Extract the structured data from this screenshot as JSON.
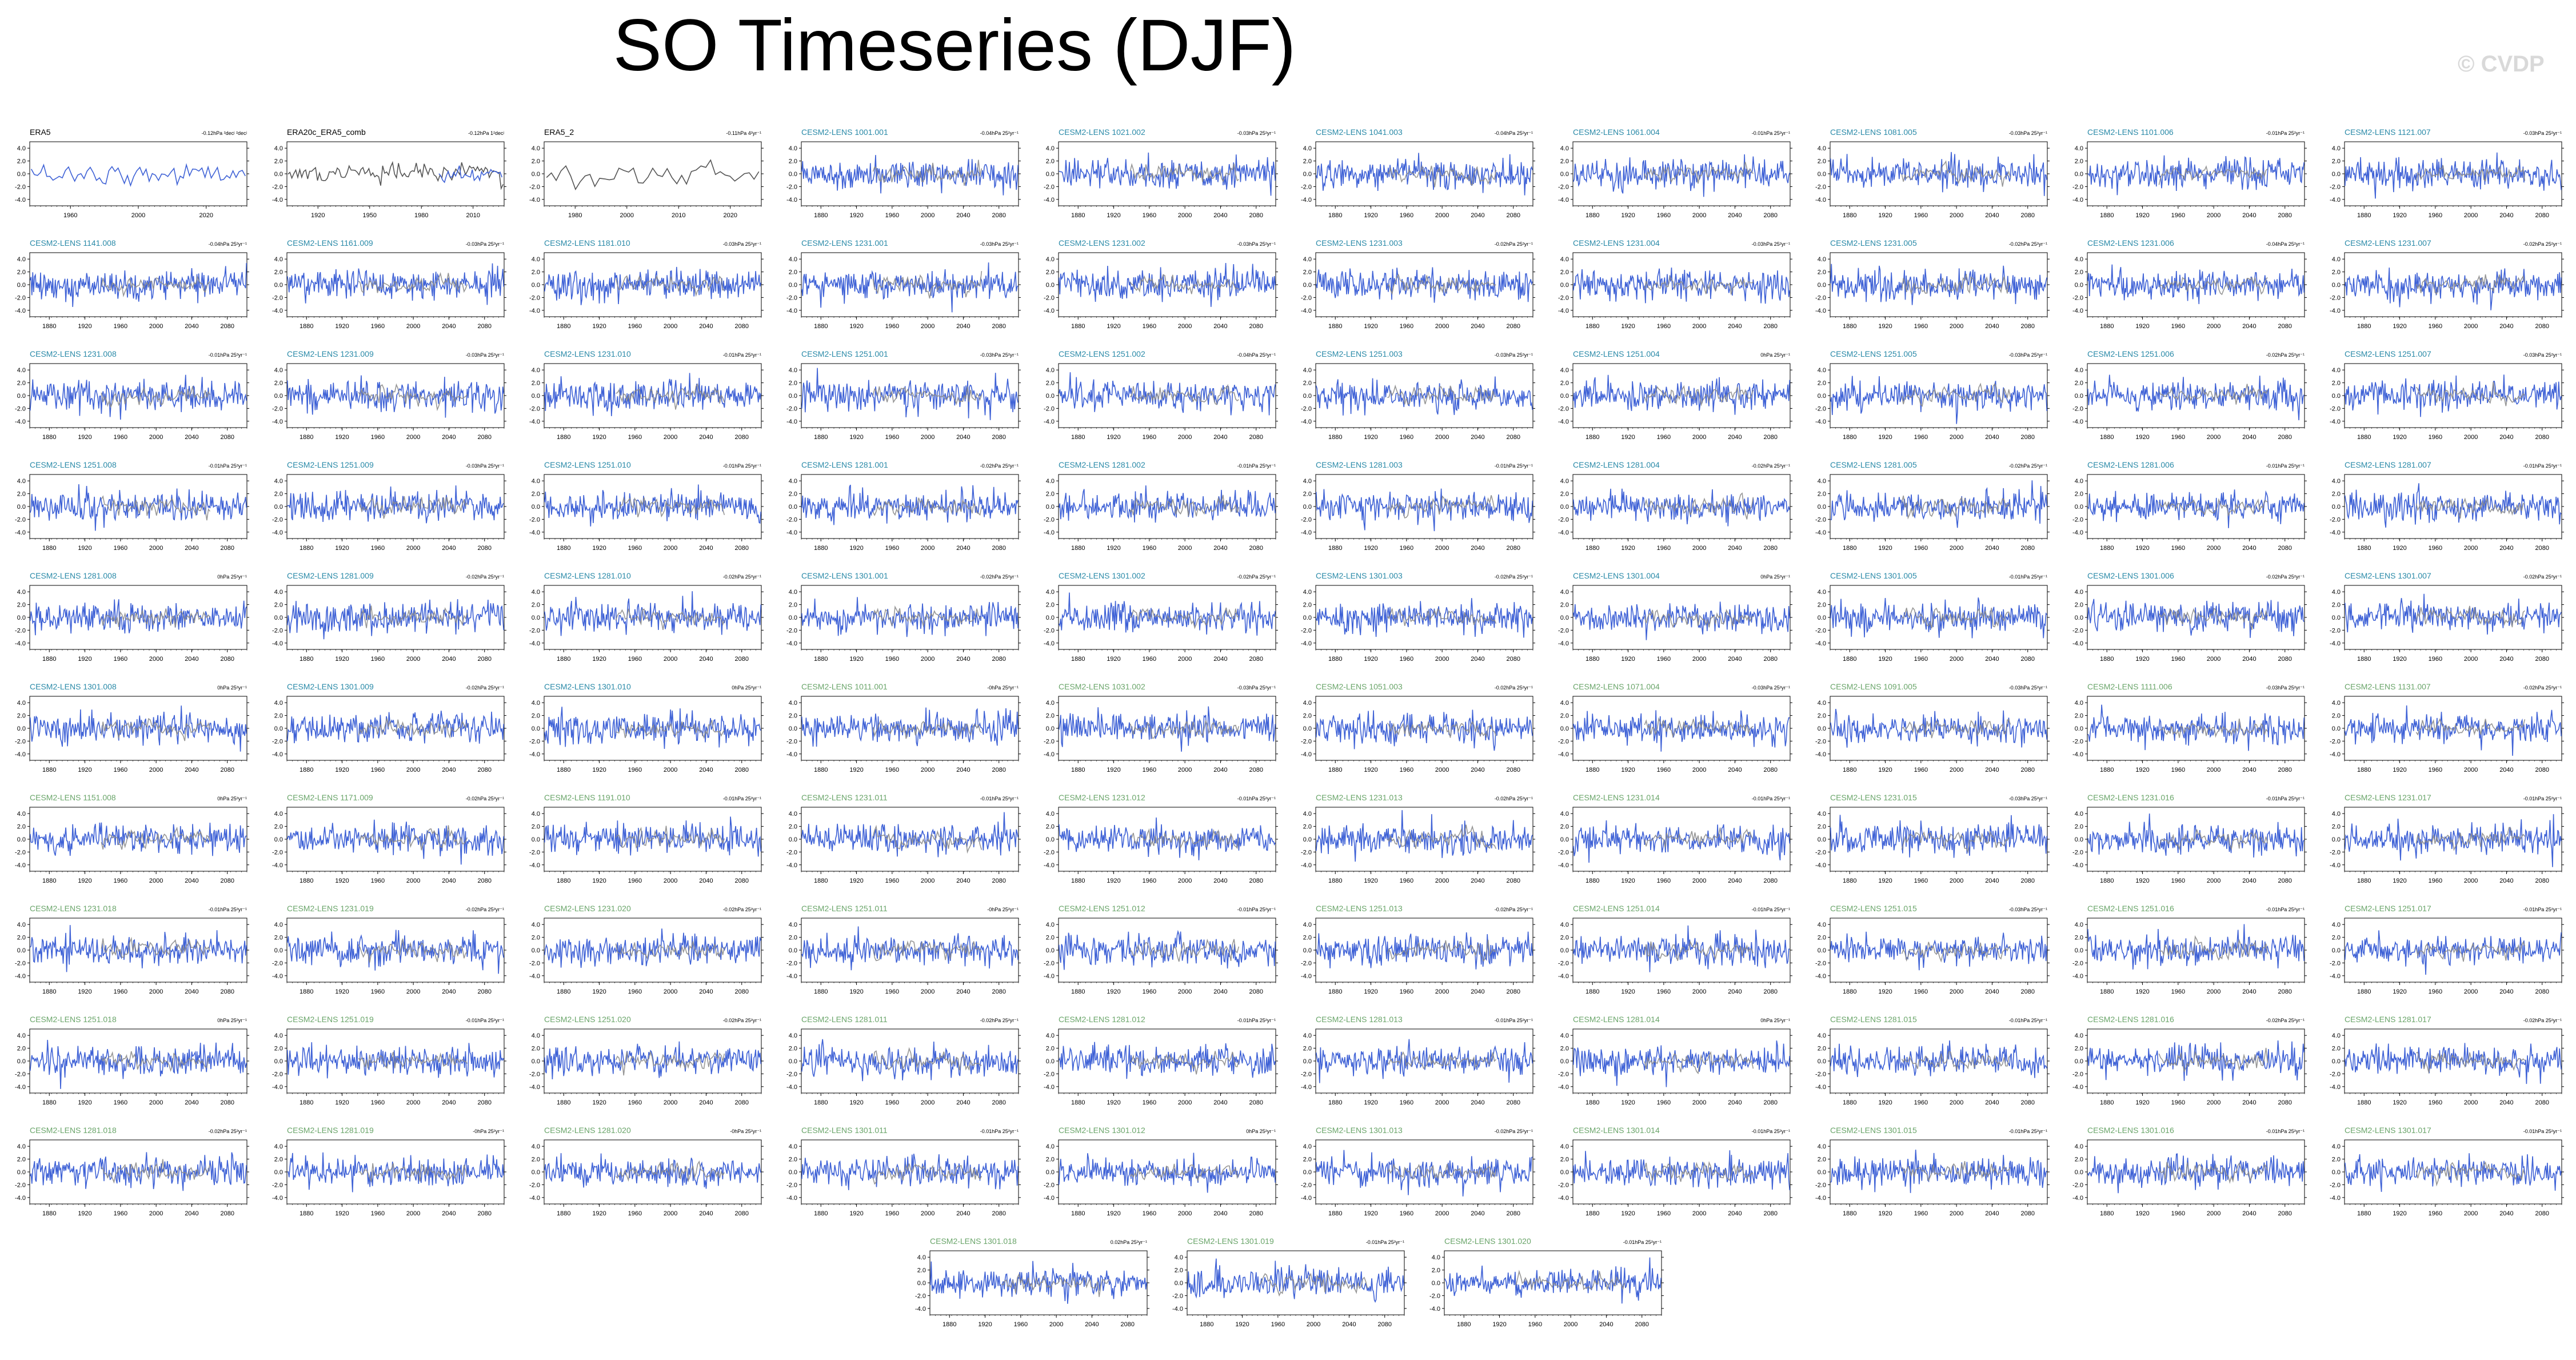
{
  "title": "SO Timeseries (DJF)",
  "watermark": "© CVDP",
  "colors": {
    "series": "#3f62d6",
    "overlay": "#8c8c8c",
    "obs_line": "#555555",
    "title_teal": "#2a8aa8",
    "title_green": "#6aa56a",
    "title_black": "#000000"
  },
  "chart_data": {
    "type": "line",
    "layout": "grid",
    "yticks": [
      "4.0",
      "2.0",
      "0.0",
      "-2.0",
      "-4.0"
    ],
    "panels": [
      {
        "title": "ERA5",
        "note": "-0.12hPa ²decʲ ²decʲ",
        "xticks": [
          "1960",
          "2000",
          "2020"
        ],
        "color": "black",
        "kind": "obs1"
      },
      {
        "title": "ERA20c_ERA5_comb",
        "note": "-0.12hPa 1²decʲ",
        "xticks": [
          "1920",
          "1950",
          "1980",
          "2010"
        ],
        "color": "black",
        "kind": "obs2"
      },
      {
        "title": "ERA5_2",
        "note": "-0.11hPa 4²yr⁻¹",
        "xticks": [
          "1980",
          "2000",
          "2010",
          "2020"
        ],
        "color": "black",
        "kind": "obs3"
      },
      {
        "title": "CESM2-LENS 1001.001",
        "note": "-0.04hPa 25²yr⁻¹",
        "color": "teal"
      },
      {
        "title": "CESM2-LENS 1021.002",
        "note": "-0.03hPa 25²yr⁻¹",
        "color": "teal"
      },
      {
        "title": "CESM2-LENS 1041.003",
        "note": "-0.04hPa 25²yr⁻¹",
        "color": "teal"
      },
      {
        "title": "CESM2-LENS 1061.004",
        "note": "-0.01hPa 25²yr⁻¹",
        "color": "teal"
      },
      {
        "title": "CESM2-LENS 1081.005",
        "note": "-0.03hPa 25²yr⁻¹",
        "color": "teal"
      },
      {
        "title": "CESM2-LENS 1101.006",
        "note": "-0.01hPa 25²yr⁻¹",
        "color": "teal"
      },
      {
        "title": "CESM2-LENS 1121.007",
        "note": "-0.03hPa 25²yr⁻¹",
        "color": "teal"
      },
      {
        "title": "CESM2-LENS 1141.008",
        "note": "-0.04hPa 25²yr⁻¹",
        "color": "teal"
      },
      {
        "title": "CESM2-LENS 1161.009",
        "note": "-0.03hPa 25²yr⁻¹",
        "color": "teal"
      },
      {
        "title": "CESM2-LENS 1181.010",
        "note": "-0.03hPa 25²yr⁻¹",
        "color": "teal"
      },
      {
        "title": "CESM2-LENS 1231.001",
        "note": "-0.03hPa 25²yr⁻¹",
        "color": "teal"
      },
      {
        "title": "CESM2-LENS 1231.002",
        "note": "-0.03hPa 25²yr⁻¹",
        "color": "teal"
      },
      {
        "title": "CESM2-LENS 1231.003",
        "note": "-0.02hPa 25²yr⁻¹",
        "color": "teal"
      },
      {
        "title": "CESM2-LENS 1231.004",
        "note": "-0.03hPa 25²yr⁻¹",
        "color": "teal"
      },
      {
        "title": "CESM2-LENS 1231.005",
        "note": "-0.02hPa 25²yr⁻¹",
        "color": "teal"
      },
      {
        "title": "CESM2-LENS 1231.006",
        "note": "-0.04hPa 25²yr⁻¹",
        "color": "teal"
      },
      {
        "title": "CESM2-LENS 1231.007",
        "note": "-0.02hPa 25²yr⁻¹",
        "color": "teal"
      },
      {
        "title": "CESM2-LENS 1231.008",
        "note": "-0.01hPa 25²yr⁻¹",
        "color": "teal"
      },
      {
        "title": "CESM2-LENS 1231.009",
        "note": "-0.03hPa 25²yr⁻¹",
        "color": "teal"
      },
      {
        "title": "CESM2-LENS 1231.010",
        "note": "-0.01hPa 25²yr⁻¹",
        "color": "teal"
      },
      {
        "title": "CESM2-LENS 1251.001",
        "note": "-0.03hPa 25²yr⁻¹",
        "color": "teal"
      },
      {
        "title": "CESM2-LENS 1251.002",
        "note": "-0.04hPa 25²yr⁻¹",
        "color": "teal"
      },
      {
        "title": "CESM2-LENS 1251.003",
        "note": "-0.03hPa 25²yr⁻¹",
        "color": "teal"
      },
      {
        "title": "CESM2-LENS 1251.004",
        "note": "0hPa 25²yr⁻¹",
        "color": "teal"
      },
      {
        "title": "CESM2-LENS 1251.005",
        "note": "-0.03hPa 25²yr⁻¹",
        "color": "teal"
      },
      {
        "title": "CESM2-LENS 1251.006",
        "note": "-0.02hPa 25²yr⁻¹",
        "color": "teal"
      },
      {
        "title": "CESM2-LENS 1251.007",
        "note": "-0.03hPa 25²yr⁻¹",
        "color": "teal"
      },
      {
        "title": "CESM2-LENS 1251.008",
        "note": "-0.01hPa 25²yr⁻¹",
        "color": "teal"
      },
      {
        "title": "CESM2-LENS 1251.009",
        "note": "-0.03hPa 25²yr⁻¹",
        "color": "teal"
      },
      {
        "title": "CESM2-LENS 1251.010",
        "note": "-0.01hPa 25²yr⁻¹",
        "color": "teal"
      },
      {
        "title": "CESM2-LENS 1281.001",
        "note": "-0.02hPa 25²yr⁻¹",
        "color": "teal"
      },
      {
        "title": "CESM2-LENS 1281.002",
        "note": "-0.01hPa 25²yr⁻¹",
        "color": "teal"
      },
      {
        "title": "CESM2-LENS 1281.003",
        "note": "-0.01hPa 25²yr⁻¹",
        "color": "teal"
      },
      {
        "title": "CESM2-LENS 1281.004",
        "note": "-0.02hPa 25²yr⁻¹",
        "color": "teal"
      },
      {
        "title": "CESM2-LENS 1281.005",
        "note": "-0.02hPa 25²yr⁻¹",
        "color": "teal"
      },
      {
        "title": "CESM2-LENS 1281.006",
        "note": "-0.01hPa 25²yr⁻¹",
        "color": "teal"
      },
      {
        "title": "CESM2-LENS 1281.007",
        "note": "-0.01hPa 25²yr⁻¹",
        "color": "teal"
      },
      {
        "title": "CESM2-LENS 1281.008",
        "note": "0hPa 25²yr⁻¹",
        "color": "teal"
      },
      {
        "title": "CESM2-LENS 1281.009",
        "note": "-0.02hPa 25²yr⁻¹",
        "color": "teal"
      },
      {
        "title": "CESM2-LENS 1281.010",
        "note": "-0.02hPa 25²yr⁻¹",
        "color": "teal"
      },
      {
        "title": "CESM2-LENS 1301.001",
        "note": "-0.02hPa 25²yr⁻¹",
        "color": "teal"
      },
      {
        "title": "CESM2-LENS 1301.002",
        "note": "-0.02hPa 25²yr⁻¹",
        "color": "teal"
      },
      {
        "title": "CESM2-LENS 1301.003",
        "note": "-0.02hPa 25²yr⁻¹",
        "color": "teal"
      },
      {
        "title": "CESM2-LENS 1301.004",
        "note": "0hPa 25²yr⁻¹",
        "color": "teal"
      },
      {
        "title": "CESM2-LENS 1301.005",
        "note": "-0.01hPa 25²yr⁻¹",
        "color": "teal"
      },
      {
        "title": "CESM2-LENS 1301.006",
        "note": "-0.02hPa 25²yr⁻¹",
        "color": "teal"
      },
      {
        "title": "CESM2-LENS 1301.007",
        "note": "-0.02hPa 25²yr⁻¹",
        "color": "teal"
      },
      {
        "title": "CESM2-LENS 1301.008",
        "note": "0hPa 25²yr⁻¹",
        "color": "teal"
      },
      {
        "title": "CESM2-LENS 1301.009",
        "note": "-0.02hPa 25²yr⁻¹",
        "color": "teal"
      },
      {
        "title": "CESM2-LENS 1301.010",
        "note": "0hPa 25²yr⁻¹",
        "color": "teal"
      },
      {
        "title": "CESM2-LENS 1011.001",
        "note": "-0hPa 25²yr⁻¹",
        "color": "green"
      },
      {
        "title": "CESM2-LENS 1031.002",
        "note": "-0.03hPa 25²yr⁻¹",
        "color": "green"
      },
      {
        "title": "CESM2-LENS 1051.003",
        "note": "-0.02hPa 25²yr⁻¹",
        "color": "green"
      },
      {
        "title": "CESM2-LENS 1071.004",
        "note": "-0.03hPa 25²yr⁻¹",
        "color": "green"
      },
      {
        "title": "CESM2-LENS 1091.005",
        "note": "-0.03hPa 25²yr⁻¹",
        "color": "green"
      },
      {
        "title": "CESM2-LENS 1111.006",
        "note": "-0.03hPa 25²yr⁻¹",
        "color": "green"
      },
      {
        "title": "CESM2-LENS 1131.007",
        "note": "-0.02hPa 25²yr⁻¹",
        "color": "green"
      },
      {
        "title": "CESM2-LENS 1151.008",
        "note": "0hPa 25²yr⁻¹",
        "color": "green"
      },
      {
        "title": "CESM2-LENS 1171.009",
        "note": "-0.02hPa 25²yr⁻¹",
        "color": "green"
      },
      {
        "title": "CESM2-LENS 1191.010",
        "note": "-0.01hPa 25²yr⁻¹",
        "color": "green"
      },
      {
        "title": "CESM2-LENS 1231.011",
        "note": "-0.01hPa 25²yr⁻¹",
        "color": "green"
      },
      {
        "title": "CESM2-LENS 1231.012",
        "note": "-0.01hPa 25²yr⁻¹",
        "color": "green"
      },
      {
        "title": "CESM2-LENS 1231.013",
        "note": "-0.02hPa 25²yr⁻¹",
        "color": "green"
      },
      {
        "title": "CESM2-LENS 1231.014",
        "note": "-0.01hPa 25²yr⁻¹",
        "color": "green"
      },
      {
        "title": "CESM2-LENS 1231.015",
        "note": "-0.03hPa 25²yr⁻¹",
        "color": "green"
      },
      {
        "title": "CESM2-LENS 1231.016",
        "note": "-0.01hPa 25²yr⁻¹",
        "color": "green"
      },
      {
        "title": "CESM2-LENS 1231.017",
        "note": "-0.01hPa 25²yr⁻¹",
        "color": "green"
      },
      {
        "title": "CESM2-LENS 1231.018",
        "note": "-0.01hPa 25²yr⁻¹",
        "color": "green"
      },
      {
        "title": "CESM2-LENS 1231.019",
        "note": "-0.02hPa 25²yr⁻¹",
        "color": "green"
      },
      {
        "title": "CESM2-LENS 1231.020",
        "note": "-0.02hPa 25²yr⁻¹",
        "color": "green"
      },
      {
        "title": "CESM2-LENS 1251.011",
        "note": "-0hPa 25²yr⁻¹",
        "color": "green"
      },
      {
        "title": "CESM2-LENS 1251.012",
        "note": "-0.01hPa 25²yr⁻¹",
        "color": "green"
      },
      {
        "title": "CESM2-LENS 1251.013",
        "note": "-0.02hPa 25²yr⁻¹",
        "color": "green"
      },
      {
        "title": "CESM2-LENS 1251.014",
        "note": "-0.01hPa 25²yr⁻¹",
        "color": "green"
      },
      {
        "title": "CESM2-LENS 1251.015",
        "note": "-0.03hPa 25²yr⁻¹",
        "color": "green"
      },
      {
        "title": "CESM2-LENS 1251.016",
        "note": "-0.01hPa 25²yr⁻¹",
        "color": "green"
      },
      {
        "title": "CESM2-LENS 1251.017",
        "note": "-0.01hPa 25²yr⁻¹",
        "color": "green"
      },
      {
        "title": "CESM2-LENS 1251.018",
        "note": "0hPa 25²yr⁻¹",
        "color": "green"
      },
      {
        "title": "CESM2-LENS 1251.019",
        "note": "-0.01hPa 25²yr⁻¹",
        "color": "green"
      },
      {
        "title": "CESM2-LENS 1251.020",
        "note": "-0.02hPa 25²yr⁻¹",
        "color": "green"
      },
      {
        "title": "CESM2-LENS 1281.011",
        "note": "-0.02hPa 25²yr⁻¹",
        "color": "green"
      },
      {
        "title": "CESM2-LENS 1281.012",
        "note": "-0.01hPa 25²yr⁻¹",
        "color": "green"
      },
      {
        "title": "CESM2-LENS 1281.013",
        "note": "-0.01hPa 25²yr⁻¹",
        "color": "green"
      },
      {
        "title": "CESM2-LENS 1281.014",
        "note": "0hPa 25²yr⁻¹",
        "color": "green"
      },
      {
        "title": "CESM2-LENS 1281.015",
        "note": "-0.01hPa 25²yr⁻¹",
        "color": "green"
      },
      {
        "title": "CESM2-LENS 1281.016",
        "note": "-0.02hPa 25²yr⁻¹",
        "color": "green"
      },
      {
        "title": "CESM2-LENS 1281.017",
        "note": "-0.02hPa 25²yr⁻¹",
        "color": "green"
      },
      {
        "title": "CESM2-LENS 1281.018",
        "note": "-0.02hPa 25²yr⁻¹",
        "color": "green"
      },
      {
        "title": "CESM2-LENS 1281.019",
        "note": "-0hPa 25²yr⁻¹",
        "color": "green"
      },
      {
        "title": "CESM2-LENS 1281.020",
        "note": "-0hPa 25²yr⁻¹",
        "color": "green"
      },
      {
        "title": "CESM2-LENS 1301.011",
        "note": "-0.01hPa 25²yr⁻¹",
        "color": "green"
      },
      {
        "title": "CESM2-LENS 1301.012",
        "note": "0hPa 25²yr⁻¹",
        "color": "green"
      },
      {
        "title": "CESM2-LENS 1301.013",
        "note": "-0.02hPa 25²yr⁻¹",
        "color": "green"
      },
      {
        "title": "CESM2-LENS 1301.014",
        "note": "-0.01hPa 25²yr⁻¹",
        "color": "green"
      },
      {
        "title": "CESM2-LENS 1301.015",
        "note": "-0.01hPa 25²yr⁻¹",
        "color": "green"
      },
      {
        "title": "CESM2-LENS 1301.016",
        "note": "-0.01hPa 25²yr⁻¹",
        "color": "green"
      },
      {
        "title": "CESM2-LENS 1301.017",
        "note": "-0.01hPa 25²yr⁻¹",
        "color": "green"
      },
      {
        "title": "CESM2-LENS 1301.018",
        "note": "0.02hPa 25²yr⁻¹",
        "color": "green"
      },
      {
        "title": "CESM2-LENS 1301.019",
        "note": "-0.01hPa 25²yr⁻¹",
        "color": "green"
      },
      {
        "title": "CESM2-LENS 1301.020",
        "note": "-0.01hPa 25²yr⁻¹",
        "color": "green"
      }
    ],
    "model_xticks": [
      "1880",
      "1920",
      "1960",
      "2000",
      "2040",
      "2080"
    ],
    "ylim": [
      -5,
      5
    ],
    "grid": false,
    "legend": "none"
  }
}
